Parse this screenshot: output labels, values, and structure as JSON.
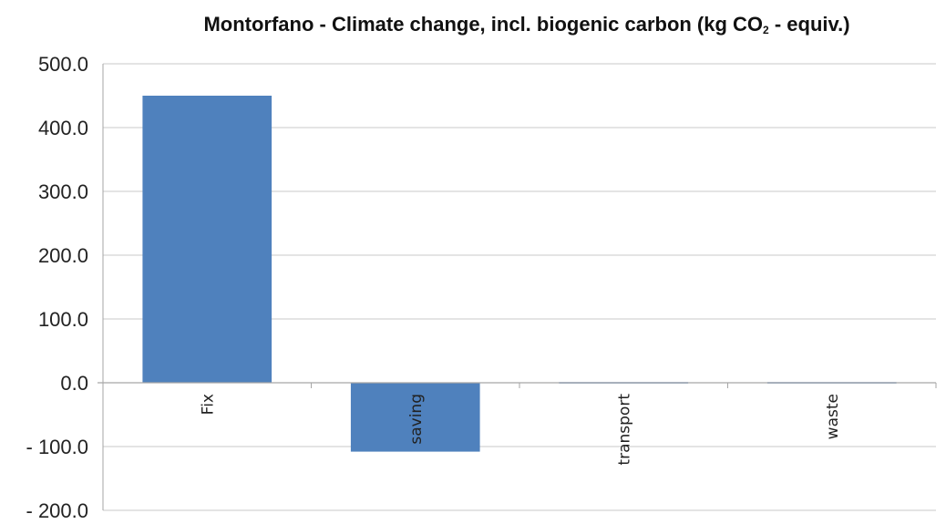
{
  "chart_data": {
    "type": "bar",
    "title": {
      "before": "Montorfano - Climate change, incl. biogenic carbon (kg CO",
      "sub": "2",
      "after": " - equiv.)"
    },
    "categories": [
      "Fix",
      "saving",
      "transport",
      "waste"
    ],
    "values": [
      450.0,
      -108.0,
      1.0,
      1.0
    ],
    "ylim": [
      -200,
      500
    ],
    "yticks": [
      500,
      400,
      300,
      200,
      100,
      0,
      -100,
      -200
    ],
    "ytick_labels": [
      "500.0",
      "400.0",
      "300.0",
      "200.0",
      "100.0",
      "0.0",
      "- 100.0",
      "- 200.0"
    ],
    "xlabel": "",
    "ylabel": "",
    "grid": true,
    "legend": "none",
    "bar_color": "#4F81BD",
    "grid_color": "#C8C8C8"
  }
}
